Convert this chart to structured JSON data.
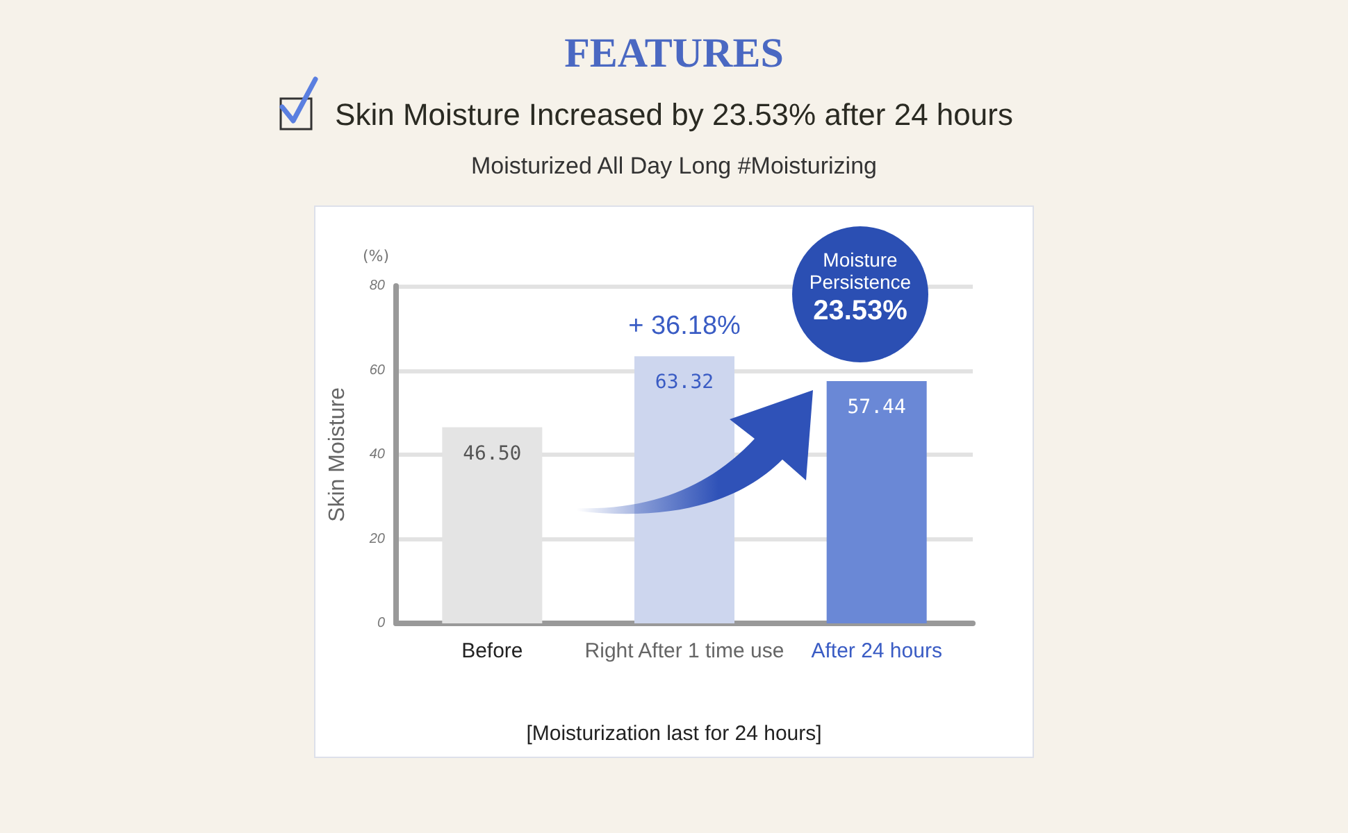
{
  "chart_data": {
    "type": "bar",
    "title": "FEATURES",
    "subtitle": "Skin Moisture Increased by 23.53% after 24 hours",
    "ylabel": "Skin Moisture",
    "annotations": [
      "Moisturized All Day Long #Moisturizing",
      "(%)",
      {
        "text": "+ 36.18%",
        "x": "Right After 1 time use",
        "y": 63.32
      },
      "Moisture Persistence 23.53%",
      "[Moisturization last for 24 hours]"
    ],
    "categories": [
      "Before",
      "Right After 1 time use",
      "After 24 hours"
    ],
    "values": [
      46.5,
      63.32,
      57.44
    ],
    "value_labels": [
      "46.50",
      "63.32",
      "57.44"
    ],
    "colors": [
      "#e4e4e4",
      "#cdd6ee",
      "#6a88d6"
    ],
    "ylim": [
      0,
      80
    ],
    "yticks": [
      0,
      20,
      40,
      60,
      80
    ],
    "grid": "y"
  }
}
